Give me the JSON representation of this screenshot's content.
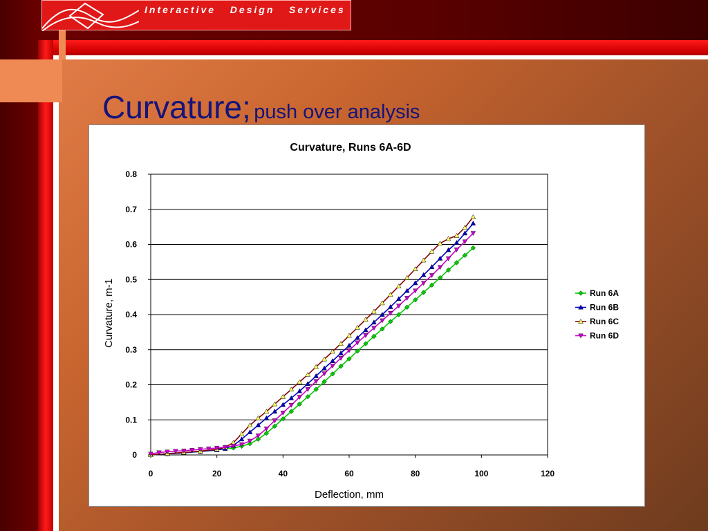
{
  "logo": {
    "text": "Interactive   Design   Services"
  },
  "slide": {
    "title_main": "Curvature;",
    "title_sub": "push over analysis"
  },
  "colors": {
    "title": "#14147a",
    "run6a": "#00cc00",
    "run6b": "#0000cc",
    "run6c": "#8b0000",
    "run6d": "#cc00cc"
  },
  "chart_data": {
    "type": "line",
    "title": "Curvature, Runs 6A-6D",
    "xlabel": "Deflection, mm",
    "ylabel": "Curvature, m-1",
    "xlim": [
      0,
      120
    ],
    "ylim": [
      0,
      0.8
    ],
    "xticks": [
      "0",
      "20",
      "40",
      "60",
      "80",
      "100",
      "120"
    ],
    "yticks": [
      "0",
      "0.1",
      "0.2",
      "0.3",
      "0.4",
      "0.5",
      "0.6",
      "0.7",
      "0.8"
    ],
    "grid": "horizontal",
    "legend": "right",
    "series": [
      {
        "name": "Run 6A",
        "marker": "diamond",
        "color": "#00cc00",
        "x": [
          0,
          5,
          10,
          15,
          20,
          25,
          27.5,
          30,
          32.5,
          35,
          37.5,
          40,
          42.5,
          45,
          47.5,
          50,
          52.5,
          55,
          57.5,
          60,
          62.5,
          65,
          67.5,
          70,
          72.5,
          75,
          77.5,
          80,
          82.5,
          85,
          87.5,
          90,
          92.5,
          95,
          97.5
        ],
        "y": [
          0,
          0.003,
          0.006,
          0.01,
          0.015,
          0.02,
          0.025,
          0.032,
          0.045,
          0.062,
          0.082,
          0.103,
          0.124,
          0.145,
          0.166,
          0.187,
          0.209,
          0.231,
          0.253,
          0.274,
          0.296,
          0.317,
          0.338,
          0.359,
          0.38,
          0.4,
          0.421,
          0.442,
          0.463,
          0.484,
          0.505,
          0.527,
          0.548,
          0.569,
          0.59
        ]
      },
      {
        "name": "Run 6B",
        "marker": "triangle",
        "color": "#0000cc",
        "x": [
          0,
          5,
          10,
          15,
          20,
          22.5,
          25,
          27.5,
          30,
          32.5,
          35,
          37.5,
          40,
          42.5,
          45,
          47.5,
          50,
          52.5,
          55,
          57.5,
          60,
          62.5,
          65,
          67.5,
          70,
          72.5,
          75,
          77.5,
          80,
          82.5,
          85,
          87.5,
          90,
          92.5,
          95,
          97.5
        ],
        "y": [
          0,
          0.003,
          0.006,
          0.01,
          0.014,
          0.018,
          0.027,
          0.045,
          0.065,
          0.085,
          0.105,
          0.124,
          0.143,
          0.162,
          0.182,
          0.203,
          0.225,
          0.247,
          0.268,
          0.29,
          0.312,
          0.334,
          0.356,
          0.378,
          0.4,
          0.422,
          0.445,
          0.468,
          0.49,
          0.513,
          0.536,
          0.56,
          0.584,
          0.605,
          0.632,
          0.66
        ]
      },
      {
        "name": "Run 6C",
        "marker": "triangle",
        "color": "#8b0000",
        "x": [
          0,
          5,
          10,
          15,
          20,
          22.5,
          25,
          27.5,
          30,
          32.5,
          35,
          37.5,
          40,
          42.5,
          45,
          47.5,
          50,
          52.5,
          55,
          57.5,
          60,
          62.5,
          65,
          67.5,
          70,
          72.5,
          75,
          77.5,
          80,
          82.5,
          85,
          87.5,
          90,
          92.5,
          95,
          97.5
        ],
        "y": [
          0,
          0.004,
          0.007,
          0.011,
          0.016,
          0.022,
          0.035,
          0.06,
          0.085,
          0.105,
          0.124,
          0.145,
          0.166,
          0.187,
          0.208,
          0.229,
          0.251,
          0.273,
          0.295,
          0.317,
          0.34,
          0.363,
          0.386,
          0.409,
          0.433,
          0.457,
          0.481,
          0.505,
          0.53,
          0.555,
          0.58,
          0.603,
          0.616,
          0.625,
          0.648,
          0.678
        ]
      },
      {
        "name": "Run 6D",
        "marker": "invtriangle",
        "color": "#cc00cc",
        "x": [
          0,
          2.5,
          5,
          7.5,
          10,
          12.5,
          15,
          17.5,
          20,
          22.5,
          25,
          27.5,
          30,
          32.5,
          35,
          37.5,
          40,
          42.5,
          45,
          47.5,
          50,
          52.5,
          55,
          57.5,
          60,
          62.5,
          65,
          67.5,
          70,
          72.5,
          75,
          77.5,
          80,
          82.5,
          85,
          87.5,
          90,
          92.5,
          95,
          97.5
        ],
        "y": [
          0.003,
          0.007,
          0.009,
          0.011,
          0.012,
          0.014,
          0.016,
          0.018,
          0.02,
          0.022,
          0.026,
          0.03,
          0.04,
          0.055,
          0.075,
          0.098,
          0.12,
          0.142,
          0.165,
          0.187,
          0.21,
          0.232,
          0.254,
          0.276,
          0.298,
          0.32,
          0.341,
          0.362,
          0.383,
          0.404,
          0.425,
          0.447,
          0.468,
          0.49,
          0.512,
          0.535,
          0.56,
          0.585,
          0.608,
          0.632
        ]
      }
    ]
  }
}
